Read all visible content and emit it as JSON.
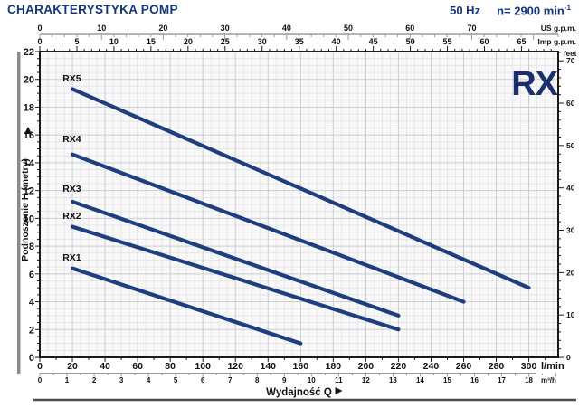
{
  "header": {
    "title": "CHARAKTERYSTYKA POMP",
    "frequency": "50 Hz",
    "speed": {
      "text": "n= 2900 min",
      "sup": "-1"
    }
  },
  "logo_text": "RX",
  "colors": {
    "navy": "#12367e",
    "curve": "#1e3e80",
    "logo": "#1b2e6e",
    "grid_minor": "#e6e6e9",
    "grid_major": "#cccdd2",
    "plot_bg": "#f8f8f9",
    "axis_dark": "#1a1a1a",
    "axis_gray": "#9a9a9a",
    "tick_text": "#111111",
    "side_bar": "#8a8a8a",
    "bottom_rule": "#4d4d4d"
  },
  "chart_data": {
    "type": "line",
    "title": "CHARAKTERYSTYKA POMP",
    "x_axis_label": "Wydajność Q",
    "x_axis_arrow": "right-triangle-arrow",
    "y_axis_arrow": "right-triangle-arrow",
    "x_range_lmin": [
      0,
      318
    ],
    "y_range_m": [
      0,
      22
    ],
    "grid": "on",
    "axes": {
      "us_gpm": {
        "label": "US g.p.m.",
        "lmin_per_unit": 3.7854,
        "major": 10,
        "minor": 2,
        "max_label": 70
      },
      "imp_gpm": {
        "label": "Imp g.p.m.",
        "lmin_per_unit": 4.5461,
        "major": 5,
        "minor": 1,
        "max_label": 65
      },
      "lmin": {
        "label": "l/min",
        "lmin_per_unit": 1,
        "major": 20,
        "minor": 10,
        "max_label": 300
      },
      "m3h": {
        "label": "m³/h",
        "lmin_per_unit": 16.6667,
        "major": 1,
        "minor": 0.5,
        "max_label": 18
      },
      "meters": {
        "label": "Podnoszenie H (metry)",
        "major": 2,
        "minor": 0.5,
        "max_label": 22
      },
      "feet": {
        "label": "feet",
        "m_per_unit": 0.3048,
        "major": 10,
        "minor": 2,
        "max_label": 70
      }
    },
    "series": [
      {
        "name": "RX5",
        "points": [
          [
            20,
            19.3
          ],
          [
            300,
            5.0
          ]
        ],
        "label_at": [
          14,
          19.85
        ]
      },
      {
        "name": "RX4",
        "points": [
          [
            20,
            14.6
          ],
          [
            260,
            4.0
          ]
        ],
        "label_at": [
          14,
          15.5
        ]
      },
      {
        "name": "RX3",
        "points": [
          [
            20,
            11.2
          ],
          [
            220,
            3.0
          ]
        ],
        "label_at": [
          14,
          11.9
        ]
      },
      {
        "name": "RX2",
        "points": [
          [
            20,
            9.4
          ],
          [
            220,
            2.0
          ]
        ],
        "label_at": [
          14,
          9.95
        ]
      },
      {
        "name": "RX1",
        "points": [
          [
            20,
            6.4
          ],
          [
            160,
            1.0
          ]
        ],
        "label_at": [
          14,
          6.95
        ]
      }
    ]
  }
}
